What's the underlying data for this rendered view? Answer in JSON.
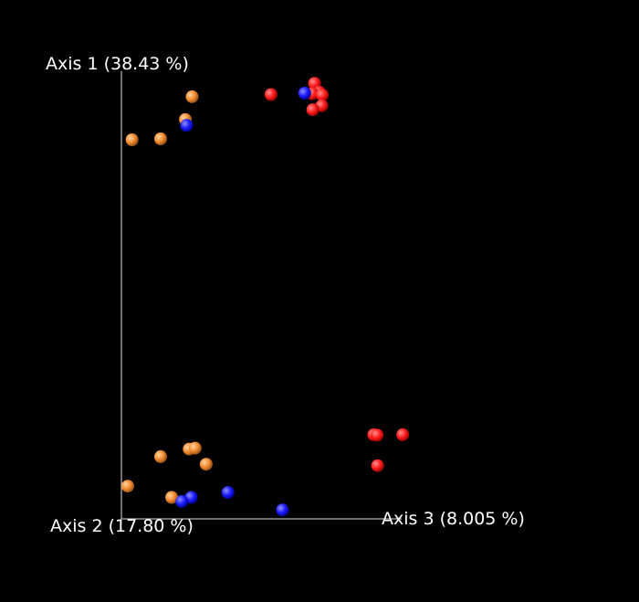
{
  "chart_data": {
    "type": "scatter",
    "title": "",
    "axes": {
      "axis1_label": "Axis 1 (38.43 %)",
      "axis2_label": "Axis 2 (17.80 %)",
      "axis3_label": "Axis 3 (8.005 %)"
    },
    "xlim": [
      0,
      100
    ],
    "ylim": [
      0,
      100
    ],
    "background": "#000000",
    "axis_color": "#e0e0e0",
    "series": [
      {
        "color": "#ff1a1a",
        "points": [
          [
            45.3,
            97.3
          ],
          [
            46.4,
            95.3
          ],
          [
            44.8,
            95.0
          ],
          [
            47.1,
            94.7
          ],
          [
            47.0,
            92.3
          ],
          [
            44.9,
            91.4
          ],
          [
            35.1,
            94.8
          ],
          [
            59.2,
            18.8
          ],
          [
            60.0,
            18.7
          ],
          [
            66.0,
            18.8
          ],
          [
            60.1,
            11.9
          ]
        ]
      },
      {
        "color": "#f28a30",
        "points": [
          [
            16.6,
            94.3
          ],
          [
            15.0,
            89.2
          ],
          [
            9.2,
            84.9
          ],
          [
            2.5,
            84.7
          ],
          [
            19.9,
            12.2
          ],
          [
            15.9,
            15.6
          ],
          [
            17.3,
            15.8
          ],
          [
            9.2,
            13.9
          ],
          [
            1.5,
            7.3
          ],
          [
            11.8,
            4.8
          ]
        ]
      },
      {
        "color": "#1a1aff",
        "points": [
          [
            43.0,
            95.1
          ],
          [
            15.3,
            87.9
          ],
          [
            25.0,
            5.9
          ],
          [
            16.4,
            4.8
          ],
          [
            14.2,
            3.9
          ],
          [
            37.8,
            2.0
          ]
        ]
      }
    ]
  }
}
